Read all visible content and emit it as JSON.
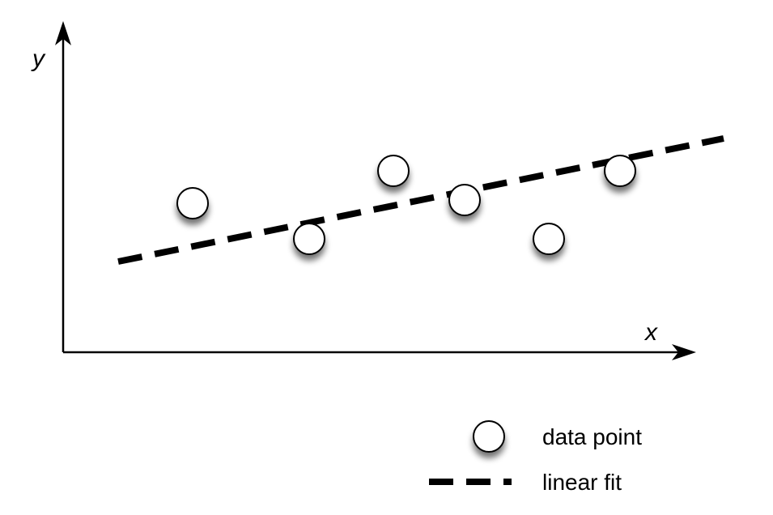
{
  "chart_data": {
    "type": "scatter",
    "xlabel": "x",
    "ylabel": "y",
    "xlim": [
      0,
      10
    ],
    "ylim": [
      0,
      10
    ],
    "grid": false,
    "legend_position": "bottom-right",
    "series": [
      {
        "kind": "points",
        "x": [
          2.0,
          3.8,
          5.1,
          6.2,
          7.5,
          8.6
        ],
        "y": [
          4.6,
          3.5,
          5.6,
          4.7,
          3.5,
          5.6
        ]
      },
      {
        "kind": "linear-fit",
        "x": [
          0.85,
          10.2
        ],
        "y": [
          2.8,
          6.6
        ]
      }
    ],
    "legend": [
      {
        "label": "data point",
        "marker": "circle"
      },
      {
        "label": "linear fit",
        "marker": "dashed-line"
      }
    ],
    "colors": {
      "marker_fill": "#ffffff",
      "marker_stroke": "#000000",
      "line": "#000000",
      "axis": "#000000"
    }
  }
}
